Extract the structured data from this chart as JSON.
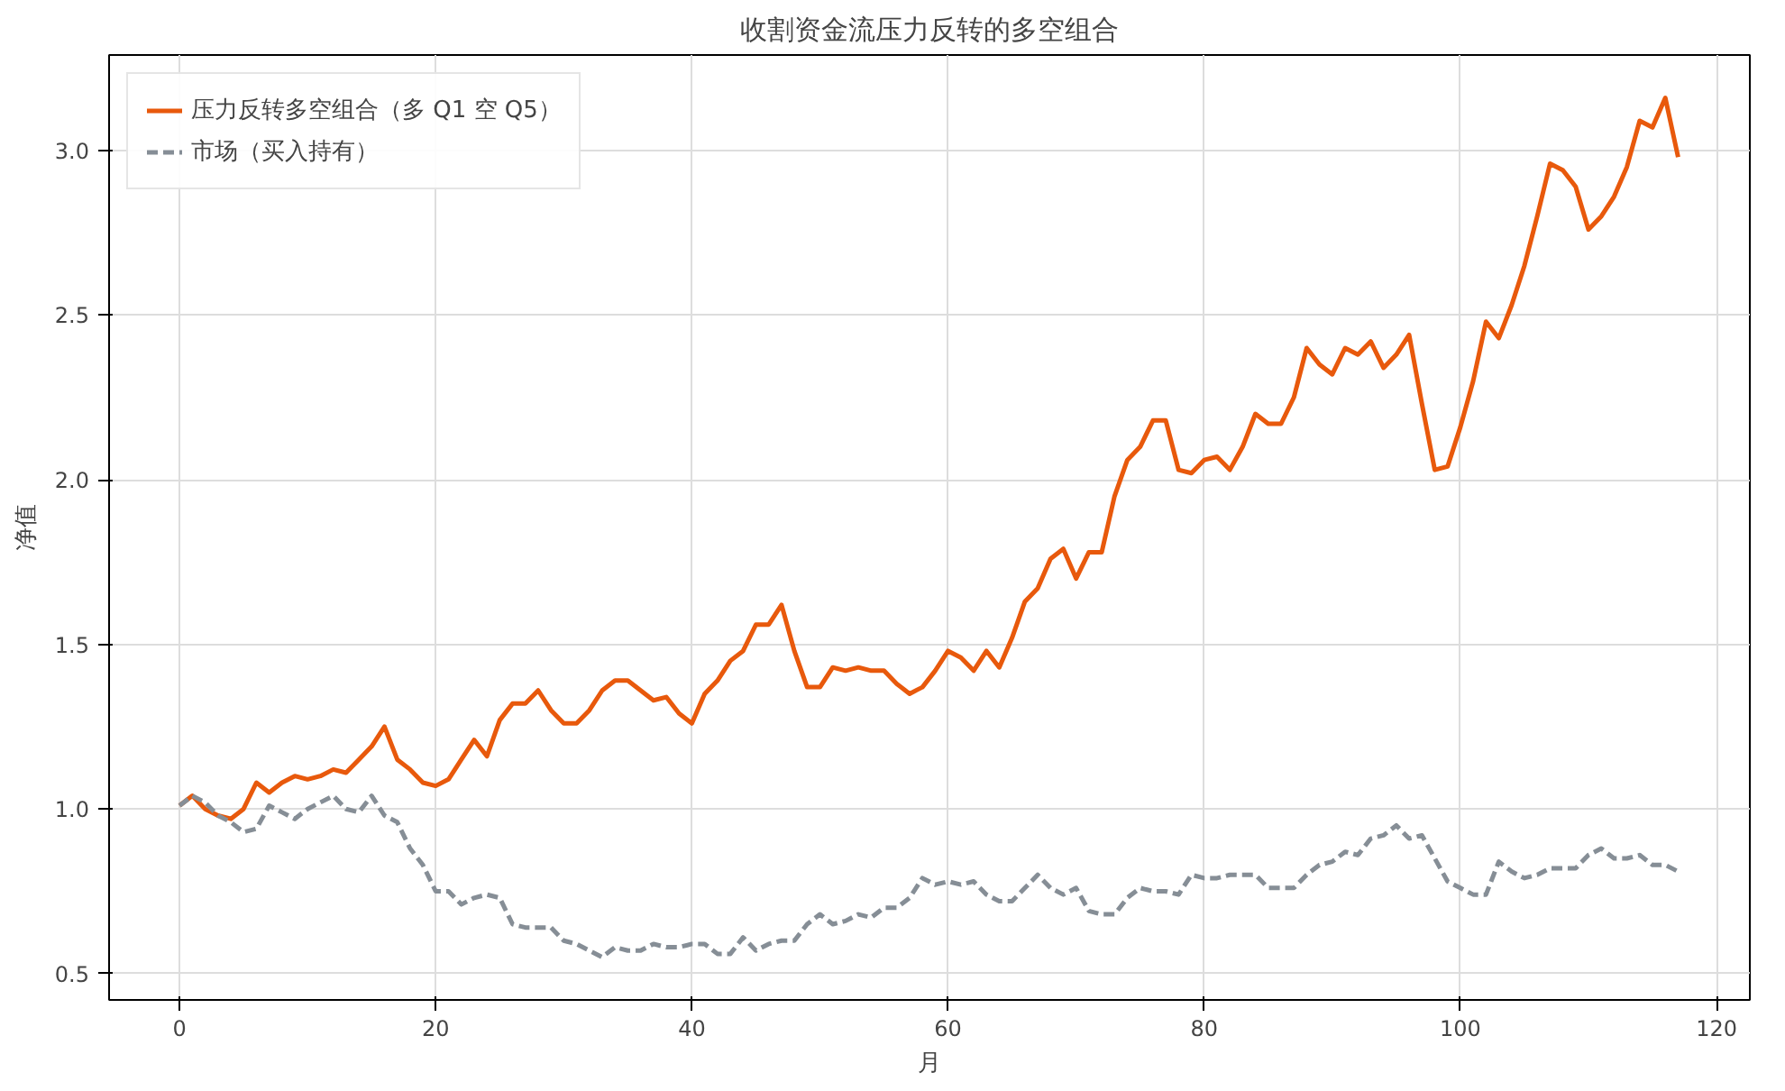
{
  "chart_data": {
    "type": "line",
    "title": "收割资金流压力反转的多空组合",
    "xlabel": "月",
    "ylabel": "净值",
    "x": [
      0,
      1,
      2,
      3,
      4,
      5,
      6,
      7,
      8,
      9,
      10,
      11,
      12,
      13,
      14,
      15,
      16,
      17,
      18,
      19,
      20,
      21,
      22,
      23,
      24,
      25,
      26,
      27,
      28,
      29,
      30,
      31,
      32,
      33,
      34,
      35,
      36,
      37,
      38,
      39,
      40,
      41,
      42,
      43,
      44,
      45,
      46,
      47,
      48,
      49,
      50,
      51,
      52,
      53,
      54,
      55,
      56,
      57,
      58,
      59,
      60,
      61,
      62,
      63,
      64,
      65,
      66,
      67,
      68,
      69,
      70,
      71,
      72,
      73,
      74,
      75,
      76,
      77,
      78,
      79,
      80,
      81,
      82,
      83,
      84,
      85,
      86,
      87,
      88,
      89,
      90,
      91,
      92,
      93,
      94,
      95,
      96,
      97,
      98,
      99,
      100,
      101,
      102,
      103,
      104,
      105,
      106,
      107,
      108,
      109,
      110,
      111,
      112,
      113,
      114,
      115,
      116,
      117
    ],
    "series": [
      {
        "name": "压力反转多空组合（多 Q1 空 Q5）",
        "color": "#e8590c",
        "line_style": "solid",
        "values": [
          1.01,
          1.04,
          1.0,
          0.98,
          0.97,
          1.0,
          1.08,
          1.05,
          1.08,
          1.1,
          1.09,
          1.1,
          1.12,
          1.11,
          1.15,
          1.19,
          1.25,
          1.15,
          1.12,
          1.08,
          1.07,
          1.09,
          1.15,
          1.21,
          1.16,
          1.27,
          1.32,
          1.32,
          1.36,
          1.3,
          1.26,
          1.26,
          1.3,
          1.36,
          1.39,
          1.39,
          1.36,
          1.33,
          1.34,
          1.29,
          1.26,
          1.35,
          1.39,
          1.45,
          1.48,
          1.56,
          1.56,
          1.62,
          1.48,
          1.37,
          1.37,
          1.43,
          1.42,
          1.43,
          1.42,
          1.42,
          1.38,
          1.35,
          1.37,
          1.42,
          1.48,
          1.46,
          1.42,
          1.48,
          1.43,
          1.52,
          1.63,
          1.67,
          1.76,
          1.79,
          1.7,
          1.78,
          1.78,
          1.95,
          2.06,
          2.1,
          2.18,
          2.18,
          2.03,
          2.02,
          2.06,
          2.07,
          2.03,
          2.1,
          2.2,
          2.17,
          2.17,
          2.25,
          2.4,
          2.35,
          2.32,
          2.4,
          2.38,
          2.42,
          2.34,
          2.38,
          2.44,
          2.23,
          2.03,
          2.04,
          2.16,
          2.3,
          2.48,
          2.43,
          2.53,
          2.65,
          2.8,
          2.96,
          2.94,
          2.89,
          2.76,
          2.8,
          2.86,
          2.95,
          3.09,
          3.07,
          3.16,
          2.98
        ]
      },
      {
        "name": "市场（买入持有）",
        "color": "#868e96",
        "line_style": "dashed",
        "values": [
          1.01,
          1.04,
          1.02,
          0.98,
          0.96,
          0.93,
          0.94,
          1.01,
          0.99,
          0.97,
          1.0,
          1.02,
          1.04,
          1.0,
          0.99,
          1.04,
          0.98,
          0.96,
          0.88,
          0.83,
          0.75,
          0.75,
          0.71,
          0.73,
          0.74,
          0.73,
          0.65,
          0.64,
          0.64,
          0.64,
          0.6,
          0.59,
          0.57,
          0.55,
          0.58,
          0.57,
          0.57,
          0.59,
          0.58,
          0.58,
          0.59,
          0.59,
          0.56,
          0.56,
          0.61,
          0.57,
          0.59,
          0.6,
          0.6,
          0.65,
          0.68,
          0.65,
          0.66,
          0.68,
          0.67,
          0.7,
          0.7,
          0.73,
          0.79,
          0.77,
          0.78,
          0.77,
          0.78,
          0.74,
          0.72,
          0.72,
          0.76,
          0.8,
          0.76,
          0.74,
          0.76,
          0.69,
          0.68,
          0.68,
          0.73,
          0.76,
          0.75,
          0.75,
          0.74,
          0.8,
          0.79,
          0.79,
          0.8,
          0.8,
          0.8,
          0.76,
          0.76,
          0.76,
          0.8,
          0.83,
          0.84,
          0.87,
          0.86,
          0.91,
          0.92,
          0.95,
          0.91,
          0.92,
          0.85,
          0.78,
          0.76,
          0.74,
          0.74,
          0.84,
          0.81,
          0.79,
          0.8,
          0.82,
          0.82,
          0.82,
          0.86,
          0.88,
          0.85,
          0.85,
          0.86,
          0.83,
          0.83,
          0.81
        ]
      }
    ],
    "xlim": [
      -5.5,
      122.6
    ],
    "ylim": [
      0.42,
      3.29
    ],
    "xticks": [
      0,
      20,
      40,
      60,
      80,
      100,
      120
    ],
    "yticks": [
      {
        "value": 0.5,
        "label": "0.5"
      },
      {
        "value": 1.0,
        "label": "1.0"
      },
      {
        "value": 1.5,
        "label": "1.5"
      },
      {
        "value": 2.0,
        "label": "2.0"
      },
      {
        "value": 2.5,
        "label": "2.5"
      },
      {
        "value": 3.0,
        "label": "3.0"
      }
    ],
    "grid": true,
    "legend": "top left",
    "marker": "none"
  }
}
